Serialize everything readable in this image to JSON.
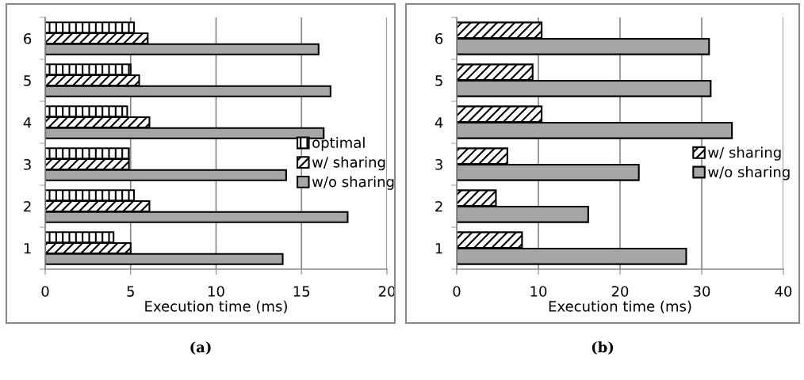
{
  "chart_data": [
    {
      "type": "bar",
      "orientation": "horizontal",
      "categories": [
        "6",
        "5",
        "4",
        "3",
        "2",
        "1"
      ],
      "xlabel": "Execution time (ms)",
      "xlim": [
        0,
        20
      ],
      "xticks": [
        0,
        5,
        10,
        15,
        20
      ],
      "grid": "x",
      "legend": "right",
      "annotations": [
        "(a)"
      ],
      "series": [
        {
          "name": "optimal",
          "color": "#000000",
          "values": [
            5.2,
            5.0,
            4.8,
            4.9,
            5.2,
            4.0
          ]
        },
        {
          "name": "w/ sharing",
          "color": "#000000",
          "values": [
            6.0,
            5.5,
            6.1,
            4.9,
            6.1,
            5.0
          ]
        },
        {
          "name": "w/o sharing",
          "color": "#a6a6a6",
          "values": [
            16.0,
            16.7,
            16.3,
            14.1,
            17.7,
            13.9
          ]
        }
      ]
    },
    {
      "type": "bar",
      "orientation": "horizontal",
      "categories": [
        "6",
        "5",
        "4",
        "3",
        "2",
        "1"
      ],
      "xlabel": "Execution time (ms)",
      "xlim": [
        0,
        40
      ],
      "xticks": [
        0,
        10,
        20,
        30,
        40
      ],
      "grid": "x",
      "legend": "right",
      "annotations": [
        "(b)"
      ],
      "series": [
        {
          "name": "w/ sharing",
          "color": "#000000",
          "values": [
            10.4,
            9.3,
            10.4,
            6.2,
            4.8,
            8.0
          ]
        },
        {
          "name": "w/o sharing",
          "color": "#a6a6a6",
          "values": [
            30.9,
            31.1,
            33.7,
            22.3,
            16.1,
            28.1
          ]
        }
      ]
    }
  ]
}
